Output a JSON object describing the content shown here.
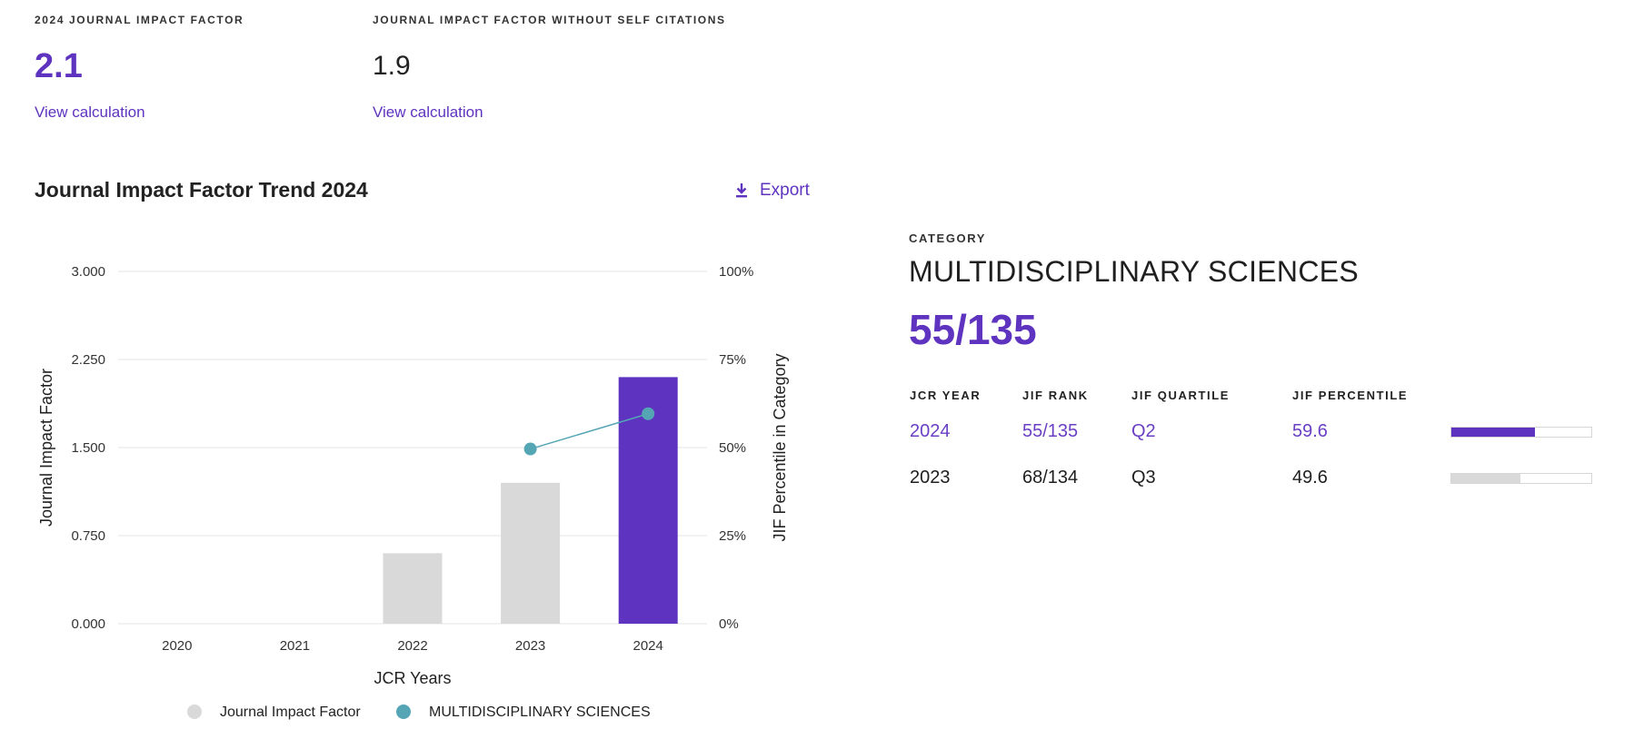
{
  "metrics": {
    "jif": {
      "label": "2024 JOURNAL IMPACT FACTOR",
      "value": "2.1",
      "link": "View calculation"
    },
    "jif_no_self": {
      "label": "JOURNAL IMPACT FACTOR WITHOUT SELF CITATIONS",
      "value": "1.9",
      "link": "View calculation"
    }
  },
  "trend": {
    "title": "Journal Impact Factor Trend 2024",
    "export_label": "Export"
  },
  "chart_data": {
    "type": "bar",
    "title": "Journal Impact Factor Trend 2024",
    "xlabel": "JCR Years",
    "ylabel": "Journal Impact Factor",
    "y2label": "JIF Percentile in Category",
    "categories": [
      "2020",
      "2021",
      "2022",
      "2023",
      "2024"
    ],
    "ylim": [
      0,
      3
    ],
    "yticks": [
      "0.000",
      "0.750",
      "1.500",
      "2.250",
      "3.000"
    ],
    "y2lim": [
      0,
      100
    ],
    "y2ticks": [
      "0%",
      "25%",
      "50%",
      "75%",
      "100%"
    ],
    "grid": true,
    "legend_position": "bottom",
    "series": [
      {
        "name": "Journal Impact Factor",
        "type": "bar",
        "values": [
          null,
          null,
          0.6,
          1.2,
          2.1
        ],
        "highlight_index": 4
      },
      {
        "name": "MULTIDISCIPLINARY SCIENCES",
        "type": "line",
        "axis": "right",
        "values": [
          null,
          null,
          null,
          49.6,
          59.6
        ]
      }
    ],
    "colors": {
      "bar": "#d9d9d9",
      "bar_highlight": "#5e33bf",
      "line": "#55a6b5",
      "grid": "#e4e4e4",
      "legend_bar": "#d9d9d9",
      "legend_line": "#55a6b5"
    }
  },
  "category": {
    "label": "CATEGORY",
    "name": "MULTIDISCIPLINARY SCIENCES",
    "rank": "55/135",
    "table": {
      "headers": [
        "JCR YEAR",
        "JIF RANK",
        "JIF QUARTILE",
        "JIF PERCENTILE"
      ],
      "rows": [
        {
          "year": "2024",
          "rank": "55/135",
          "quartile": "Q2",
          "percentile": "59.6",
          "percentile_value": 59.6,
          "bar_color": "#5e33bf"
        },
        {
          "year": "2023",
          "rank": "68/134",
          "quartile": "Q3",
          "percentile": "49.6",
          "percentile_value": 49.6,
          "bar_color": "#d9d9d9"
        }
      ]
    }
  },
  "colors": {
    "accent": "#5e33bf"
  }
}
